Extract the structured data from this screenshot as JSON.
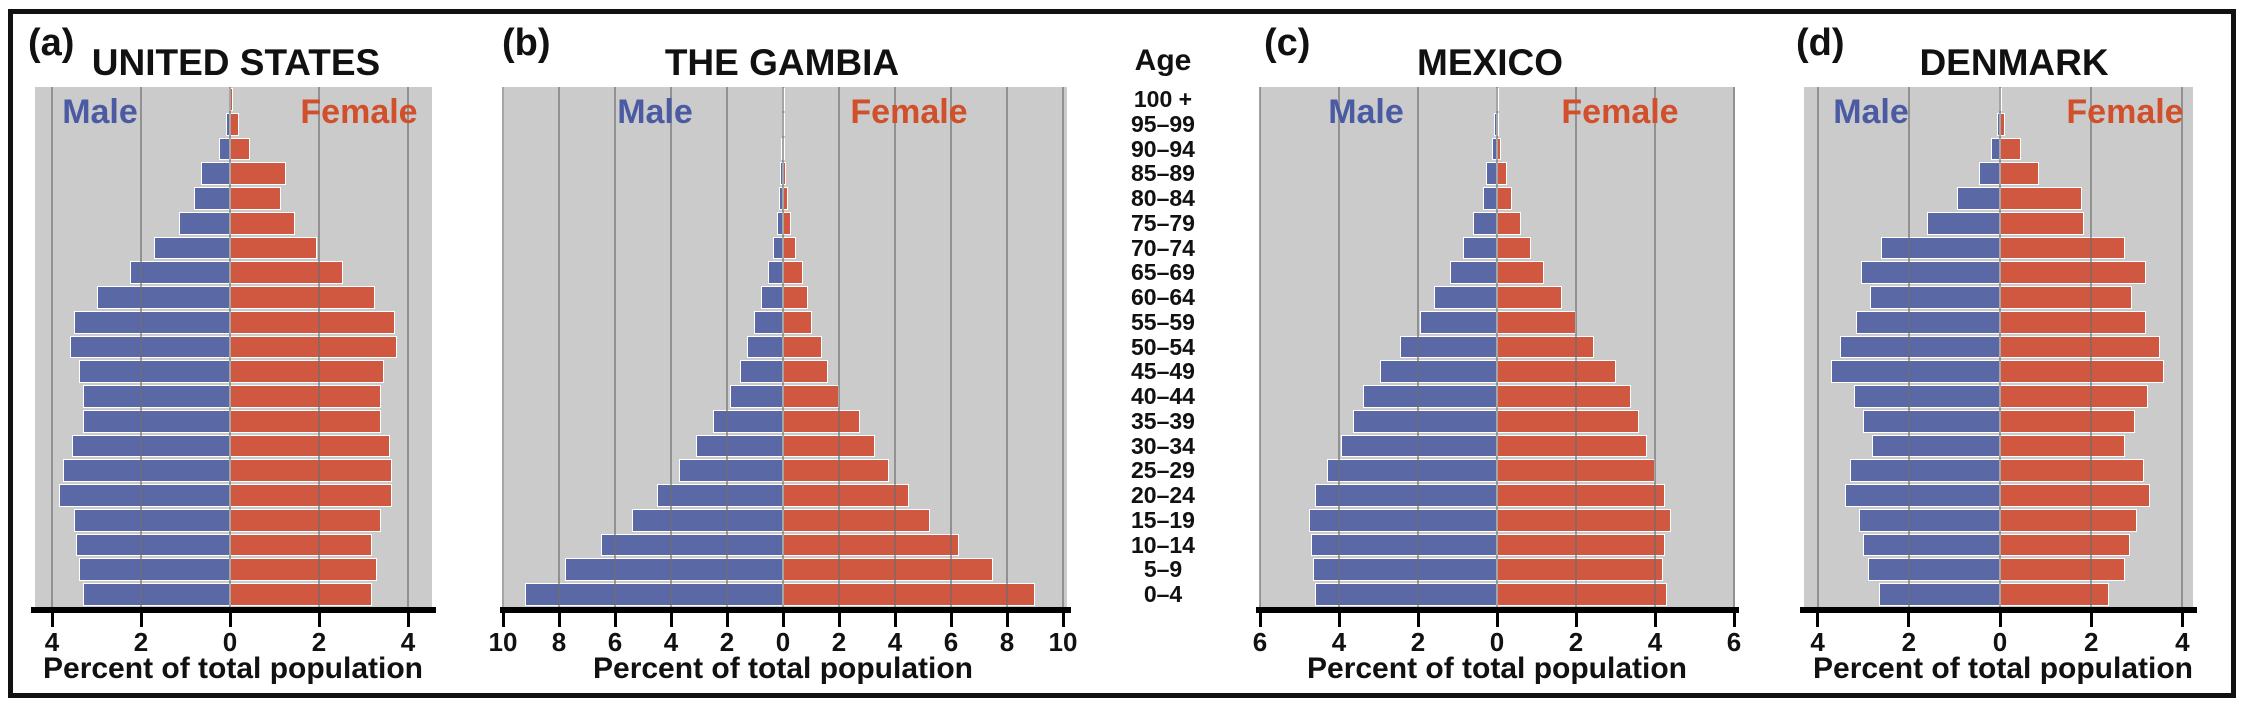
{
  "figure": {
    "age_axis": {
      "header": "Age",
      "groups_top_to_bottom": [
        "100 +",
        "95–99",
        "90–94",
        "85–89",
        "80–84",
        "75–79",
        "70–74",
        "65–69",
        "60–64",
        "55–59",
        "50–54",
        "45–49",
        "40–44",
        "35–39",
        "30–34",
        "25–29",
        "20–24",
        "15–19",
        "10–14",
        "5–9",
        "0–4"
      ]
    },
    "colors": {
      "male_bar": "#5A69A5",
      "female_bar": "#D05840",
      "male_label_text": "#4A5BA3",
      "female_label_text": "#D14F2A",
      "plot_background": "#CBCBCB",
      "gridline": "#6E6E6E",
      "axis_and_text": "#111111",
      "bar_outline": "#FFFFFF"
    }
  },
  "chart_data": [
    {
      "type": "bar",
      "subtype": "population-pyramid",
      "panel_label": "(a)",
      "title": "UNITED STATES",
      "male_label": "Male",
      "female_label": "Female",
      "xlabel": "Percent of total population",
      "tick_labels": [
        "4",
        "2",
        "0",
        "2",
        "4"
      ],
      "axis_range_percent": [
        -4,
        4
      ],
      "age_groups_top_to_bottom": "see figure.age_axis.groups_top_to_bottom",
      "male_percent": [
        0.03,
        0.1,
        0.25,
        0.65,
        0.8,
        1.15,
        1.7,
        2.25,
        3.0,
        3.5,
        3.6,
        3.4,
        3.3,
        3.3,
        3.55,
        3.75,
        3.85,
        3.5,
        3.45,
        3.4,
        3.3
      ],
      "female_percent": [
        0.06,
        0.2,
        0.45,
        1.25,
        1.15,
        1.45,
        1.95,
        2.55,
        3.25,
        3.7,
        3.75,
        3.45,
        3.4,
        3.4,
        3.6,
        3.65,
        3.65,
        3.4,
        3.2,
        3.3,
        3.2
      ]
    },
    {
      "type": "bar",
      "subtype": "population-pyramid",
      "panel_label": "(b)",
      "title": "THE GAMBIA",
      "male_label": "Male",
      "female_label": "Female",
      "xlabel": "Percent of total population",
      "tick_labels": [
        "10",
        "8",
        "6",
        "4",
        "2",
        "0",
        "2",
        "4",
        "6",
        "8",
        "10"
      ],
      "axis_range_percent": [
        -10,
        10
      ],
      "age_groups_top_to_bottom": "see figure.age_axis.groups_top_to_bottom",
      "male_percent": [
        0.02,
        0.04,
        0.06,
        0.1,
        0.15,
        0.22,
        0.35,
        0.55,
        0.8,
        1.05,
        1.3,
        1.55,
        1.9,
        2.5,
        3.1,
        3.7,
        4.5,
        5.4,
        6.5,
        7.8,
        9.2
      ],
      "female_percent": [
        0.02,
        0.03,
        0.06,
        0.1,
        0.18,
        0.28,
        0.45,
        0.7,
        0.9,
        1.05,
        1.4,
        1.6,
        2.0,
        2.75,
        3.3,
        3.8,
        4.5,
        5.25,
        6.3,
        7.5,
        9.0
      ]
    },
    {
      "type": "bar",
      "subtype": "population-pyramid",
      "panel_label": "(c)",
      "title": "MEXICO",
      "male_label": "Male",
      "female_label": "Female",
      "xlabel": "Percent of total population",
      "tick_labels": [
        "6",
        "4",
        "2",
        "0",
        "2",
        "4",
        "6"
      ],
      "axis_range_percent": [
        -6,
        6
      ],
      "age_groups_top_to_bottom": "see figure.age_axis.groups_top_to_bottom",
      "male_percent": [
        0.02,
        0.07,
        0.13,
        0.27,
        0.35,
        0.6,
        0.85,
        1.2,
        1.6,
        1.95,
        2.45,
        2.95,
        3.4,
        3.65,
        3.95,
        4.3,
        4.6,
        4.75,
        4.7,
        4.65,
        4.6
      ],
      "female_percent": [
        0.02,
        0.05,
        0.1,
        0.26,
        0.37,
        0.6,
        0.85,
        1.2,
        1.65,
        2.0,
        2.45,
        3.0,
        3.4,
        3.6,
        3.8,
        4.0,
        4.25,
        4.4,
        4.25,
        4.2,
        4.3
      ]
    },
    {
      "type": "bar",
      "subtype": "population-pyramid",
      "panel_label": "(d)",
      "title": "DENMARK",
      "male_label": "Male",
      "female_label": "Female",
      "xlabel": "Percent of total population",
      "tick_labels": [
        "4",
        "2",
        "0",
        "2",
        "4"
      ],
      "axis_range_percent": [
        -4,
        4
      ],
      "age_groups_top_to_bottom": "see figure.age_axis.groups_top_to_bottom",
      "male_percent": [
        0.01,
        0.06,
        0.2,
        0.45,
        0.95,
        1.6,
        2.6,
        3.05,
        2.85,
        3.15,
        3.5,
        3.7,
        3.2,
        3.0,
        2.8,
        3.3,
        3.4,
        3.1,
        3.0,
        2.9,
        2.65
      ],
      "female_percent": [
        0.04,
        0.12,
        0.45,
        0.85,
        1.8,
        1.85,
        2.75,
        3.2,
        2.9,
        3.2,
        3.5,
        3.6,
        3.25,
        2.95,
        2.75,
        3.15,
        3.3,
        3.0,
        2.85,
        2.75,
        2.4
      ]
    }
  ]
}
